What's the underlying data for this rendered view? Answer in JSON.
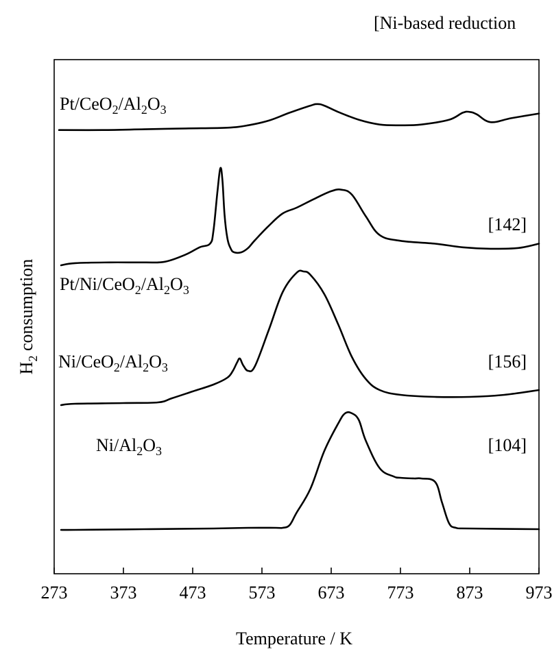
{
  "chart_data": {
    "type": "line",
    "title": "",
    "header_note": "[Ni-based reduction",
    "xlabel": "Temperature / K",
    "ylabel": {
      "prefix": "H",
      "sub": "2",
      "suffix": " consumption"
    },
    "xlim": [
      273,
      973
    ],
    "xticks": [
      273,
      373,
      473,
      573,
      673,
      773,
      873,
      973
    ],
    "y_ticks_shown": false,
    "grid": false,
    "legend": "none",
    "series": [
      {
        "name": "Pt/CeO2/Al2O3",
        "label_parts": [
          {
            "t": "Pt/CeO"
          },
          {
            "t": "2",
            "sub": true
          },
          {
            "t": "/Al"
          },
          {
            "t": "2",
            "sub": true
          },
          {
            "t": "O"
          },
          {
            "t": "3",
            "sub": true
          }
        ],
        "reference": "",
        "x": [
          280,
          343,
          403,
          463,
          523,
          553,
          583,
          613,
          643,
          653,
          663,
          683,
          713,
          743,
          773,
          803,
          843,
          863,
          873,
          883,
          903,
          933,
          973
        ],
        "values": [
          2,
          2,
          3,
          4,
          5,
          8,
          14,
          24,
          33,
          35,
          33,
          25,
          15,
          9,
          8,
          9,
          15,
          24,
          25,
          22,
          12,
          17,
          23
        ]
      },
      {
        "name": "Pt/Ni/CeO2/Al2O3",
        "label_parts": [
          {
            "t": "Pt/Ni/CeO"
          },
          {
            "t": "2",
            "sub": true
          },
          {
            "t": "/Al"
          },
          {
            "t": "2",
            "sub": true
          },
          {
            "t": "O"
          },
          {
            "t": "3",
            "sub": true
          }
        ],
        "reference": "[142]",
        "x": [
          283,
          303,
          353,
          403,
          433,
          463,
          483,
          498,
          503,
          509,
          513,
          516,
          519,
          523,
          528,
          533,
          543,
          553,
          563,
          583,
          603,
          623,
          648,
          673,
          688,
          703,
          723,
          743,
          773,
          823,
          863,
          903,
          943,
          973
        ],
        "values": [
          0,
          3,
          4,
          4,
          5,
          15,
          25,
          30,
          48,
          105,
          135,
          118,
          70,
          38,
          23,
          18,
          18,
          24,
          35,
          55,
          72,
          80,
          92,
          103,
          105,
          98,
          68,
          42,
          34,
          30,
          25,
          23,
          24,
          30
        ]
      },
      {
        "name": "Ni/CeO2/Al2O3",
        "label_parts": [
          {
            "t": "Ni/CeO"
          },
          {
            "t": "2",
            "sub": true
          },
          {
            "t": "/Al"
          },
          {
            "t": "2",
            "sub": true
          },
          {
            "t": "O"
          },
          {
            "t": "3",
            "sub": true
          }
        ],
        "reference": "[156]",
        "x": [
          283,
          303,
          373,
          423,
          443,
          473,
          503,
          523,
          531,
          537,
          541,
          546,
          553,
          563,
          583,
          603,
          623,
          633,
          643,
          663,
          683,
          703,
          723,
          743,
          773,
          823,
          873,
          923,
          973
        ],
        "values": [
          0,
          2,
          3,
          4,
          10,
          20,
          30,
          40,
          50,
          62,
          68,
          58,
          50,
          57,
          110,
          165,
          193,
          195,
          190,
          162,
          118,
          70,
          38,
          22,
          15,
          12,
          12,
          15,
          22
        ]
      },
      {
        "name": "Ni/Al2O3",
        "label_parts": [
          {
            "t": "Ni/Al"
          },
          {
            "t": "2",
            "sub": true
          },
          {
            "t": "O"
          },
          {
            "t": "3",
            "sub": true
          }
        ],
        "reference": "[104]",
        "x": [
          283,
          303,
          403,
          503,
          553,
          593,
          603,
          613,
          623,
          643,
          663,
          683,
          693,
          703,
          713,
          723,
          743,
          763,
          773,
          793,
          803,
          823,
          833,
          843,
          853,
          873,
          973
        ],
        "values": [
          0,
          0,
          1,
          2,
          3,
          3,
          3,
          7,
          25,
          60,
          115,
          155,
          170,
          170,
          160,
          130,
          90,
          78,
          76,
          75,
          75,
          70,
          40,
          10,
          3,
          2,
          1
        ]
      }
    ]
  }
}
